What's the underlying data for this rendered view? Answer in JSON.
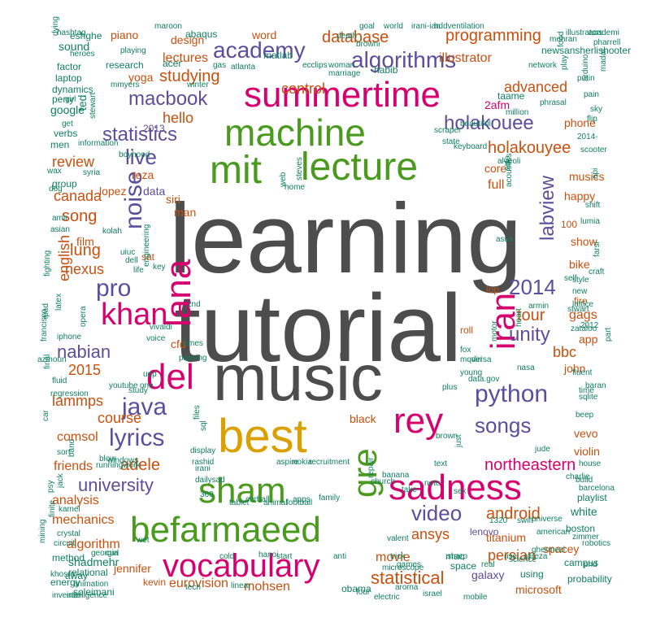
{
  "palette": {
    "grey": "#4d4d4d",
    "green": "#4a9a1e",
    "magenta": "#d6006e",
    "purple": "#5c4e9c",
    "orange": "#c8500f",
    "teal": "#0f7f5f",
    "gold": "#d9a000"
  },
  "words": [
    {
      "t": "learning",
      "c": "grey"
    },
    {
      "t": "tutorial",
      "c": "grey"
    },
    {
      "t": "music",
      "c": "grey"
    },
    {
      "t": "best",
      "c": "gold"
    },
    {
      "t": "summertime",
      "c": "magenta"
    },
    {
      "t": "machine",
      "c": "green"
    },
    {
      "t": "mit",
      "c": "green"
    },
    {
      "t": "lecture",
      "c": "green"
    },
    {
      "t": "lana",
      "c": "magenta"
    },
    {
      "t": "khan",
      "c": "magenta"
    },
    {
      "t": "del",
      "c": "magenta"
    },
    {
      "t": "iran",
      "c": "magenta"
    },
    {
      "t": "rey",
      "c": "magenta"
    },
    {
      "t": "gre",
      "c": "green"
    },
    {
      "t": "sham",
      "c": "green"
    },
    {
      "t": "sadness",
      "c": "magenta"
    },
    {
      "t": "befarmaeed",
      "c": "green"
    },
    {
      "t": "vocabulary",
      "c": "magenta"
    },
    {
      "t": "python",
      "c": "purple"
    },
    {
      "t": "java",
      "c": "purple"
    },
    {
      "t": "lyrics",
      "c": "purple"
    },
    {
      "t": "songs",
      "c": "purple"
    },
    {
      "t": "video",
      "c": "purple"
    },
    {
      "t": "2014",
      "c": "purple"
    },
    {
      "t": "pro",
      "c": "purple"
    },
    {
      "t": "noise",
      "c": "purple"
    },
    {
      "t": "live",
      "c": "purple"
    },
    {
      "t": "academy",
      "c": "purple"
    },
    {
      "t": "algorithms",
      "c": "purple"
    },
    {
      "t": "macbook",
      "c": "purple"
    },
    {
      "t": "statistics",
      "c": "purple"
    },
    {
      "t": "holakouee",
      "c": "purple"
    },
    {
      "t": "labview",
      "c": "purple"
    },
    {
      "t": "unity",
      "c": "purple"
    },
    {
      "t": "nabian",
      "c": "purple"
    },
    {
      "t": "university",
      "c": "purple"
    },
    {
      "t": "database",
      "c": "orange"
    },
    {
      "t": "programming",
      "c": "orange"
    },
    {
      "t": "illustrator",
      "c": "orange"
    },
    {
      "t": "studying",
      "c": "orange"
    },
    {
      "t": "lectures",
      "c": "orange"
    },
    {
      "t": "control",
      "c": "orange"
    },
    {
      "t": "advanced",
      "c": "orange"
    },
    {
      "t": "holakouyee",
      "c": "orange"
    },
    {
      "t": "hello",
      "c": "orange"
    },
    {
      "t": "review",
      "c": "orange"
    },
    {
      "t": "canada",
      "c": "orange"
    },
    {
      "t": "song",
      "c": "orange"
    },
    {
      "t": "lung",
      "c": "orange"
    },
    {
      "t": "nexus",
      "c": "orange"
    },
    {
      "t": "english",
      "c": "orange"
    },
    {
      "t": "2015",
      "c": "orange"
    },
    {
      "t": "lammps",
      "c": "orange"
    },
    {
      "t": "course",
      "c": "orange"
    },
    {
      "t": "comsol",
      "c": "orange"
    },
    {
      "t": "adele",
      "c": "orange"
    },
    {
      "t": "friends",
      "c": "orange"
    },
    {
      "t": "analysis",
      "c": "orange"
    },
    {
      "t": "mechanics",
      "c": "orange"
    },
    {
      "t": "algorithm",
      "c": "orange"
    },
    {
      "t": "jennifer",
      "c": "orange"
    },
    {
      "t": "eurovision",
      "c": "orange"
    },
    {
      "t": "mohsen",
      "c": "orange"
    },
    {
      "t": "statistical",
      "c": "orange"
    },
    {
      "t": "movie",
      "c": "orange"
    },
    {
      "t": "ansys",
      "c": "orange"
    },
    {
      "t": "persian",
      "c": "orange"
    },
    {
      "t": "android",
      "c": "orange"
    },
    {
      "t": "tour",
      "c": "orange"
    },
    {
      "t": "gags",
      "c": "orange"
    },
    {
      "t": "bbc",
      "c": "orange"
    },
    {
      "t": "show",
      "c": "orange"
    },
    {
      "t": "bike",
      "c": "orange"
    },
    {
      "t": "happy",
      "c": "orange"
    },
    {
      "t": "musics",
      "c": "orange"
    },
    {
      "t": "core",
      "c": "orange"
    },
    {
      "t": "full",
      "c": "orange"
    },
    {
      "t": "cfd",
      "c": "orange"
    },
    {
      "t": "black",
      "c": "orange"
    },
    {
      "t": "yoga",
      "c": "orange"
    },
    {
      "t": "design",
      "c": "orange"
    },
    {
      "t": "word",
      "c": "orange"
    },
    {
      "t": "piano",
      "c": "orange"
    },
    {
      "t": "reza",
      "c": "orange"
    },
    {
      "t": "lopez",
      "c": "orange"
    },
    {
      "t": "siri",
      "c": "orange"
    },
    {
      "t": "man",
      "c": "orange"
    },
    {
      "t": "film",
      "c": "orange"
    },
    {
      "t": "2013",
      "c": "purple"
    },
    {
      "t": "data",
      "c": "purple"
    },
    {
      "t": "sat",
      "c": "orange"
    },
    {
      "t": "lop",
      "c": "orange"
    },
    {
      "t": "roll",
      "c": "orange"
    },
    {
      "t": "fire",
      "c": "orange"
    },
    {
      "t": "app",
      "c": "orange"
    },
    {
      "t": "john",
      "c": "orange"
    },
    {
      "t": "vevo",
      "c": "orange"
    },
    {
      "t": "violin",
      "c": "orange"
    },
    {
      "t": "northeastern",
      "c": "magenta"
    },
    {
      "t": "titanium",
      "c": "orange"
    },
    {
      "t": "spacey",
      "c": "orange"
    },
    {
      "t": "microsoft",
      "c": "orange"
    },
    {
      "t": "galaxy",
      "c": "purple"
    },
    {
      "t": "phone",
      "c": "orange"
    },
    {
      "t": "100",
      "c": "orange"
    },
    {
      "t": "lenovo",
      "c": "purple"
    },
    {
      "t": "2afm",
      "c": "magenta"
    },
    {
      "t": "white",
      "c": "teal"
    },
    {
      "t": "playlist",
      "c": "teal"
    },
    {
      "t": "boston",
      "c": "teal"
    },
    {
      "t": "campus",
      "c": "teal"
    },
    {
      "t": "probability",
      "c": "teal"
    },
    {
      "t": "using",
      "c": "teal"
    },
    {
      "t": "mac",
      "c": "teal"
    },
    {
      "t": "space",
      "c": "teal"
    },
    {
      "t": "obama",
      "c": "teal"
    },
    {
      "t": "kevin",
      "c": "orange"
    },
    {
      "t": "shadmehr",
      "c": "teal"
    },
    {
      "t": "relational",
      "c": "teal"
    },
    {
      "t": "method",
      "c": "teal"
    },
    {
      "t": "energy",
      "c": "teal"
    },
    {
      "t": "away",
      "c": "teal"
    },
    {
      "t": "soleimani",
      "c": "teal"
    },
    {
      "t": "sound",
      "c": "teal"
    },
    {
      "t": "factor",
      "c": "teal"
    },
    {
      "t": "laptop",
      "c": "teal"
    },
    {
      "t": "google",
      "c": "teal"
    },
    {
      "t": "verbs",
      "c": "teal"
    },
    {
      "t": "men",
      "c": "teal"
    },
    {
      "t": "group",
      "c": "teal"
    },
    {
      "t": "dynamics",
      "c": "teal"
    },
    {
      "t": "perry",
      "c": "teal"
    },
    {
      "t": "eshghe",
      "c": "teal"
    },
    {
      "t": "heroes",
      "c": "teal"
    },
    {
      "t": "research",
      "c": "teal"
    },
    {
      "t": "acer",
      "c": "teal"
    },
    {
      "t": "matlab",
      "c": "teal"
    },
    {
      "t": "ecclips",
      "c": "teal"
    },
    {
      "t": "abaqus",
      "c": "teal"
    },
    {
      "t": "habib",
      "c": "teal"
    },
    {
      "t": "newsansherlishooter",
      "c": "teal"
    },
    {
      "t": "taame",
      "c": "teal"
    },
    {
      "t": "phrasal",
      "c": "teal"
    },
    {
      "t": "million",
      "c": "teal"
    },
    {
      "t": "network",
      "c": "teal"
    },
    {
      "t": "arduino",
      "c": "teal"
    },
    {
      "t": "play",
      "c": "teal"
    },
    {
      "t": "keyboard",
      "c": "teal"
    },
    {
      "t": "scooter",
      "c": "teal"
    },
    {
      "t": "stwart",
      "c": "teal"
    },
    {
      "t": "shift",
      "c": "teal"
    },
    {
      "t": "lumia",
      "c": "teal"
    },
    {
      "t": "style",
      "c": "teal"
    },
    {
      "t": "part",
      "c": "teal"
    },
    {
      "t": "fluent",
      "c": "teal"
    },
    {
      "t": "sqlite",
      "c": "teal"
    },
    {
      "t": "house",
      "c": "teal"
    },
    {
      "t": "build",
      "c": "teal"
    },
    {
      "t": "phd",
      "c": "teal"
    },
    {
      "t": "aspire",
      "c": "teal"
    },
    {
      "t": "nokia",
      "c": "teal"
    },
    {
      "t": "recruitment",
      "c": "teal"
    },
    {
      "t": "church",
      "c": "teal"
    },
    {
      "t": "four",
      "c": "teal"
    },
    {
      "t": "linear",
      "c": "teal"
    },
    {
      "t": "ball",
      "c": "teal"
    },
    {
      "t": "cnn",
      "c": "teal"
    },
    {
      "t": "tablet",
      "c": "teal"
    },
    {
      "t": "car",
      "c": "teal"
    },
    {
      "t": "sort",
      "c": "teal"
    },
    {
      "t": "ipad",
      "c": "teal"
    },
    {
      "t": "latex",
      "c": "teal"
    },
    {
      "t": "iphone",
      "c": "teal"
    },
    {
      "t": "youtube",
      "c": "teal"
    },
    {
      "t": "study",
      "c": "teal"
    },
    {
      "t": "regression",
      "c": "teal"
    },
    {
      "t": "fluid",
      "c": "teal"
    },
    {
      "t": "final",
      "c": "teal"
    },
    {
      "t": "udp",
      "c": "teal"
    },
    {
      "t": "one",
      "c": "teal"
    },
    {
      "t": "passing",
      "c": "teal"
    },
    {
      "t": "files",
      "c": "teal"
    },
    {
      "t": "sql",
      "c": "teal"
    },
    {
      "t": "irani",
      "c": "teal"
    },
    {
      "t": "dailysad",
      "c": "teal"
    },
    {
      "t": "360",
      "c": "teal"
    },
    {
      "t": "get",
      "c": "teal"
    },
    {
      "t": "ted",
      "c": "teal"
    },
    {
      "t": "stewart",
      "c": "teal"
    },
    {
      "t": "boyhood",
      "c": "teal"
    },
    {
      "t": "engineering",
      "c": "teal"
    },
    {
      "t": "web",
      "c": "teal"
    },
    {
      "t": "home",
      "c": "teal"
    },
    {
      "t": "steves",
      "c": "teal"
    },
    {
      "t": "life",
      "c": "teal"
    },
    {
      "t": "fox",
      "c": "teal"
    },
    {
      "t": "note",
      "c": "teal"
    },
    {
      "t": "text",
      "c": "teal"
    },
    {
      "t": "just",
      "c": "teal"
    },
    {
      "t": "repair",
      "c": "teal"
    },
    {
      "t": "sex",
      "c": "teal"
    },
    {
      "t": "self",
      "c": "teal"
    },
    {
      "t": "new",
      "c": "teal"
    },
    {
      "t": "lattice",
      "c": "teal"
    },
    {
      "t": "armin",
      "c": "teal"
    },
    {
      "t": "nasa",
      "c": "teal"
    },
    {
      "t": "jude",
      "c": "teal"
    },
    {
      "t": "american",
      "c": "teal"
    },
    {
      "t": "universe",
      "c": "teal"
    },
    {
      "t": "science",
      "c": "teal"
    },
    {
      "t": "ghermezi",
      "c": "teal"
    },
    {
      "t": "real",
      "c": "teal"
    },
    {
      "t": "israel",
      "c": "teal"
    },
    {
      "t": "mobile",
      "c": "teal"
    },
    {
      "t": "electric",
      "c": "teal"
    },
    {
      "t": "aroma",
      "c": "teal"
    },
    {
      "t": "animation",
      "c": "teal"
    },
    {
      "t": "khosro",
      "c": "teal"
    },
    {
      "t": "inventor",
      "c": "teal"
    },
    {
      "t": "intelligence",
      "c": "teal"
    },
    {
      "t": "valent",
      "c": "teal"
    },
    {
      "t": "microscope",
      "c": "teal"
    },
    {
      "t": "wet",
      "c": "teal"
    },
    {
      "t": "beep",
      "c": "teal"
    },
    {
      "t": "baran",
      "c": "teal"
    },
    {
      "t": "time",
      "c": "teal"
    },
    {
      "t": "alveoli",
      "c": "teal"
    },
    {
      "t": "asus",
      "c": "teal"
    },
    {
      "t": "solo",
      "c": "teal"
    },
    {
      "t": "acoustics",
      "c": "teal"
    },
    {
      "t": "2014-",
      "c": "teal"
    },
    {
      "t": "api",
      "c": "teal"
    },
    {
      "t": "flip",
      "c": "teal"
    },
    {
      "t": "sky",
      "c": "teal"
    },
    {
      "t": "academi",
      "c": "teal"
    },
    {
      "t": "illustrators",
      "c": "teal"
    },
    {
      "t": "pharrell",
      "c": "teal"
    },
    {
      "t": "food",
      "c": "teal"
    },
    {
      "t": "madar",
      "c": "teal"
    },
    {
      "t": "putin",
      "c": "teal"
    },
    {
      "t": "pain",
      "c": "teal"
    },
    {
      "t": "beautiful",
      "c": "teal"
    },
    {
      "t": "scraper",
      "c": "teal"
    },
    {
      "t": "state",
      "c": "teal"
    },
    {
      "t": "syria",
      "c": "teal"
    },
    {
      "t": "information",
      "c": "teal"
    },
    {
      "t": "wax",
      "c": "teal"
    },
    {
      "t": "dog",
      "c": "teal"
    },
    {
      "t": "amir",
      "c": "teal"
    },
    {
      "t": "asian",
      "c": "teal"
    },
    {
      "t": "kolah",
      "c": "teal"
    },
    {
      "t": "uiuc",
      "c": "teal"
    },
    {
      "t": "dell",
      "c": "teal"
    },
    {
      "t": "key",
      "c": "teal"
    },
    {
      "t": "2nd",
      "c": "teal"
    },
    {
      "t": "opera",
      "c": "teal"
    },
    {
      "t": "fighting",
      "c": "teal"
    },
    {
      "t": "francisco",
      "c": "teal"
    },
    {
      "t": "vivaldi",
      "c": "teal"
    },
    {
      "t": "voice",
      "c": "teal"
    },
    {
      "t": "azmoun",
      "c": "teal"
    },
    {
      "t": "display",
      "c": "teal"
    },
    {
      "t": "rashid",
      "c": "teal"
    },
    {
      "t": "hashtag",
      "c": "teal"
    },
    {
      "t": "mmyers",
      "c": "teal"
    },
    {
      "t": "girl",
      "c": "teal"
    },
    {
      "t": "winter",
      "c": "teal"
    },
    {
      "t": "gas",
      "c": "teal"
    },
    {
      "t": "atlanta",
      "c": "teal"
    },
    {
      "t": "marriage",
      "c": "teal"
    },
    {
      "t": "woman",
      "c": "teal"
    },
    {
      "t": "death",
      "c": "teal"
    },
    {
      "t": "browni",
      "c": "teal"
    },
    {
      "t": "goal",
      "c": "teal"
    },
    {
      "t": "world",
      "c": "teal"
    },
    {
      "t": "irani-ian",
      "c": "teal"
    },
    {
      "t": "hddventilation",
      "c": "teal"
    },
    {
      "t": "mehran",
      "c": "teal"
    },
    {
      "t": "maroon",
      "c": "teal"
    },
    {
      "t": "playing",
      "c": "teal"
    },
    {
      "t": "dying",
      "c": "teal"
    },
    {
      "t": "jack",
      "c": "teal"
    },
    {
      "t": "band",
      "c": "teal"
    },
    {
      "t": "psy",
      "c": "teal"
    },
    {
      "t": "finite",
      "c": "teal"
    },
    {
      "t": "crystal",
      "c": "teal"
    },
    {
      "t": "circuit",
      "c": "teal"
    },
    {
      "t": "mining",
      "c": "teal"
    },
    {
      "t": "kamel",
      "c": "teal"
    },
    {
      "t": "georgia",
      "c": "teal"
    },
    {
      "t": "curl",
      "c": "teal"
    },
    {
      "t": "runningwork",
      "c": "teal"
    },
    {
      "t": "blow",
      "c": "teal"
    },
    {
      "t": "brown",
      "c": "teal"
    },
    {
      "t": "charlie",
      "c": "teal"
    },
    {
      "t": "barcelona",
      "c": "teal"
    },
    {
      "t": "swift",
      "c": "teal"
    },
    {
      "t": "1320",
      "c": "teal"
    },
    {
      "t": "zimmer",
      "c": "teal"
    },
    {
      "t": "robotics",
      "c": "teal"
    },
    {
      "t": "alireza",
      "c": "teal"
    },
    {
      "t": "hanoi",
      "c": "teal"
    },
    {
      "t": "games",
      "c": "teal"
    },
    {
      "t": "tech",
      "c": "teal"
    },
    {
      "t": "family",
      "c": "teal"
    },
    {
      "t": "apps",
      "c": "teal"
    },
    {
      "t": "football",
      "c": "teal"
    },
    {
      "t": "animal",
      "c": "teal"
    },
    {
      "t": "times",
      "c": "teal"
    },
    {
      "t": "windows",
      "c": "teal"
    },
    {
      "t": "motor",
      "c": "teal"
    },
    {
      "t": "heart",
      "c": "teal"
    },
    {
      "t": "2012",
      "c": "teal"
    },
    {
      "t": "zataloo",
      "c": "teal"
    },
    {
      "t": "farsi",
      "c": "teal"
    },
    {
      "t": "craft",
      "c": "teal"
    },
    {
      "t": "banana",
      "c": "teal"
    },
    {
      "t": "take",
      "c": "teal"
    },
    {
      "t": "mqdiri",
      "c": "teal"
    },
    {
      "t": "versa",
      "c": "teal"
    },
    {
      "t": "young",
      "c": "teal"
    },
    {
      "t": "data.gov",
      "c": "teal"
    },
    {
      "t": "plus",
      "c": "teal"
    },
    {
      "t": "cold",
      "c": "teal"
    },
    {
      "t": "start",
      "c": "teal"
    },
    {
      "t": "anti",
      "c": "teal"
    },
    {
      "t": "trick",
      "c": "teal"
    },
    {
      "t": "sharp",
      "c": "teal"
    },
    {
      "t": "rise",
      "c": "teal"
    }
  ]
}
